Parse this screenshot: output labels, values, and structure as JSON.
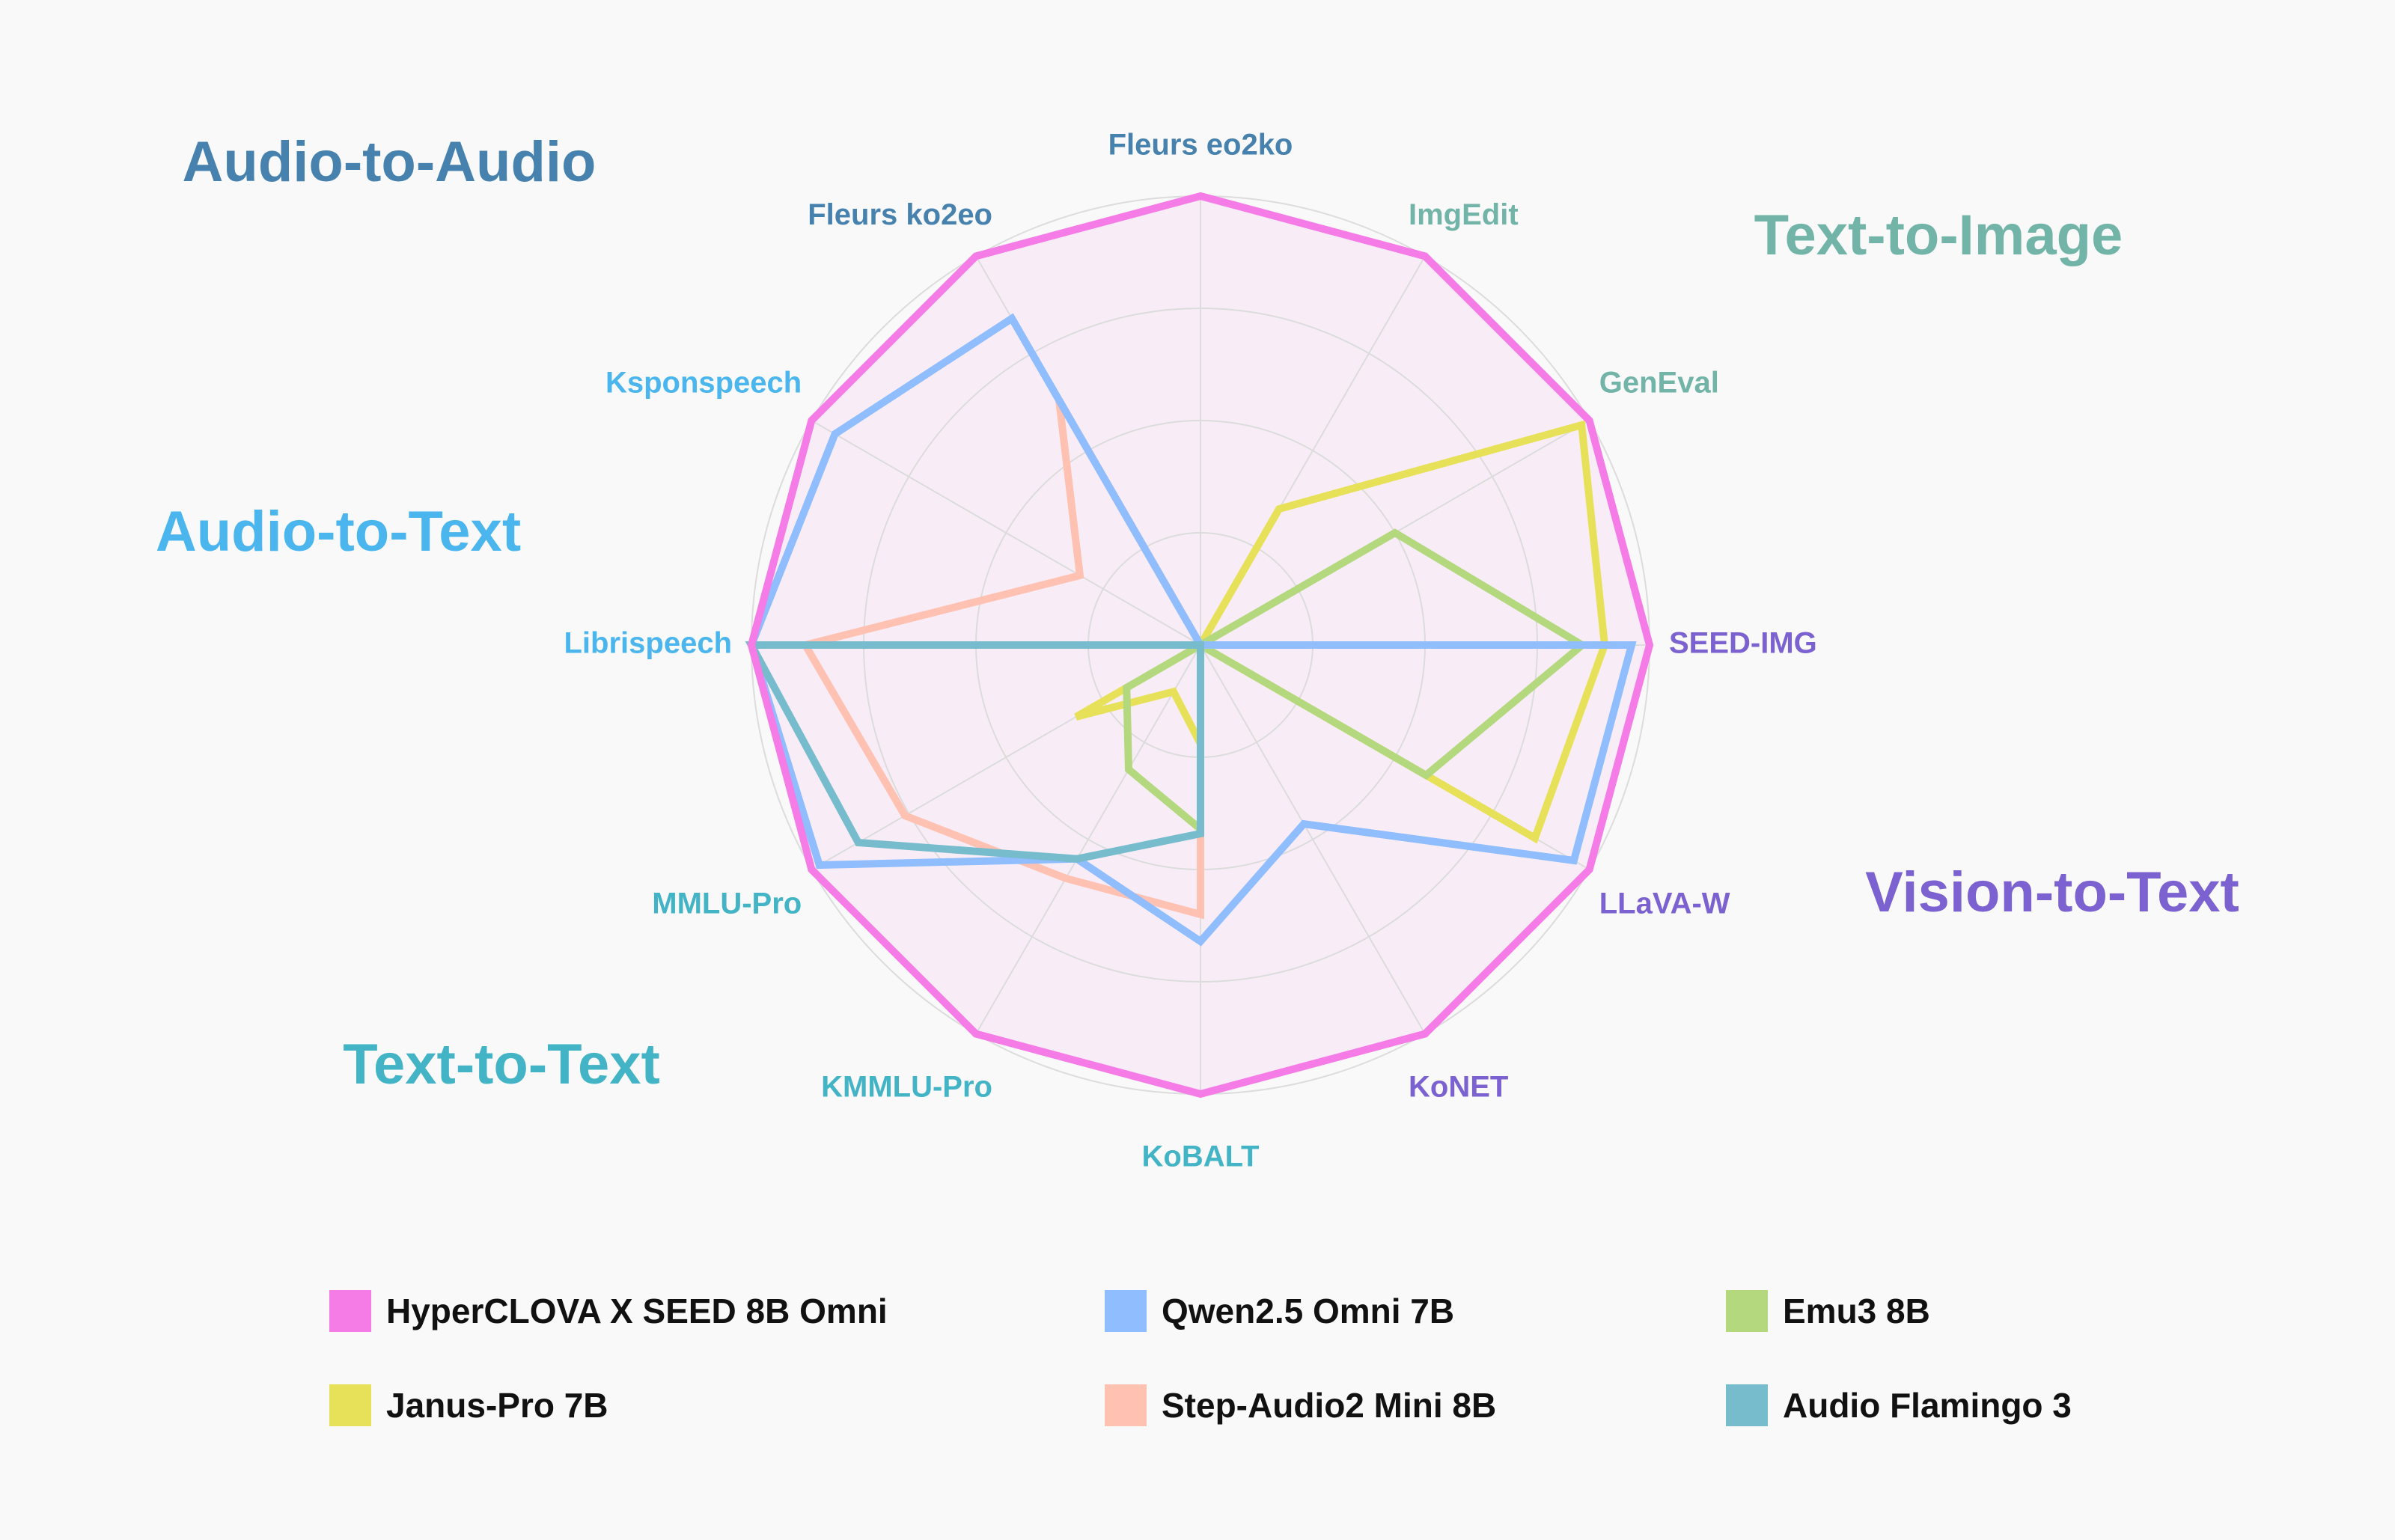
{
  "chart_data": {
    "type": "radar",
    "axes": [
      "Fleurs eo2ko",
      "ImgEdit",
      "GenEval",
      "SEED-IMG",
      "LLaVA-W",
      "KoNET",
      "KoBALT",
      "KMMLU-Pro",
      "MMLU-Pro",
      "Librispeech",
      "Ksponspeech",
      "Fleurs ko2eo"
    ],
    "axis_colors": [
      "#4682ad",
      "#72b5a8",
      "#72b5a8",
      "#7b62d0",
      "#7b62d0",
      "#7b62d0",
      "#43b3c6",
      "#43b3c6",
      "#43b3c6",
      "#4bb6ee",
      "#4bb6ee",
      "#4682ad"
    ],
    "range": [
      0,
      1
    ],
    "rings": 4,
    "grid": true,
    "groups": [
      {
        "label": "Audio-to-Audio",
        "color": "#4682ad"
      },
      {
        "label": "Text-to-Image",
        "color": "#72b5a8"
      },
      {
        "label": "Audio-to-Text",
        "color": "#4bb6ee"
      },
      {
        "label": "Vision-to-Text",
        "color": "#7b62d0"
      },
      {
        "label": "Text-to-Text",
        "color": "#43b3c6"
      }
    ],
    "legend_position": "bottom",
    "series": [
      {
        "name": "Janus-Pro 7B",
        "color": "#e7e15a",
        "values": [
          0,
          0.35,
          0.98,
          0.9,
          0.86,
          0,
          0.22,
          0.12,
          0.32,
          0,
          0,
          0
        ]
      },
      {
        "name": "Emu3 8B",
        "color": "#b3d87d",
        "values": [
          0,
          0,
          0.5,
          0.85,
          0.58,
          0,
          0.41,
          0.32,
          0.19,
          0,
          0,
          0
        ]
      },
      {
        "name": "Step-Audio2 Mini 8B",
        "color": "#ffc1b1",
        "values": [
          0,
          0,
          0,
          0,
          0,
          0,
          0.6,
          0.6,
          0.76,
          0.88,
          0.31,
          0.63
        ]
      },
      {
        "name": "Qwen2.5 Omni 7B",
        "color": "#8fbdfd",
        "values": [
          0,
          0,
          0,
          0.96,
          0.96,
          0.46,
          0.66,
          0.55,
          0.98,
          1.0,
          0.94,
          0.84
        ]
      },
      {
        "name": "Audio Flamingo 3",
        "color": "#77bccc",
        "values": [
          0,
          0,
          0,
          0,
          0,
          0,
          0.42,
          0.55,
          0.88,
          1.0,
          0,
          0
        ]
      },
      {
        "name": "HyperCLOVA X SEED 8B Omni",
        "color": "#f57be6",
        "values": [
          1.0,
          1.0,
          1.0,
          1.0,
          1.0,
          1.0,
          1.0,
          1.0,
          1.0,
          1.0,
          1.0,
          1.0
        ]
      }
    ],
    "legend_order": [
      "HyperCLOVA X SEED 8B Omni",
      "Qwen2.5 Omni 7B",
      "Emu3 8B",
      "Janus-Pro 7B",
      "Step-Audio2 Mini 8B",
      "Audio Flamingo 3"
    ]
  }
}
